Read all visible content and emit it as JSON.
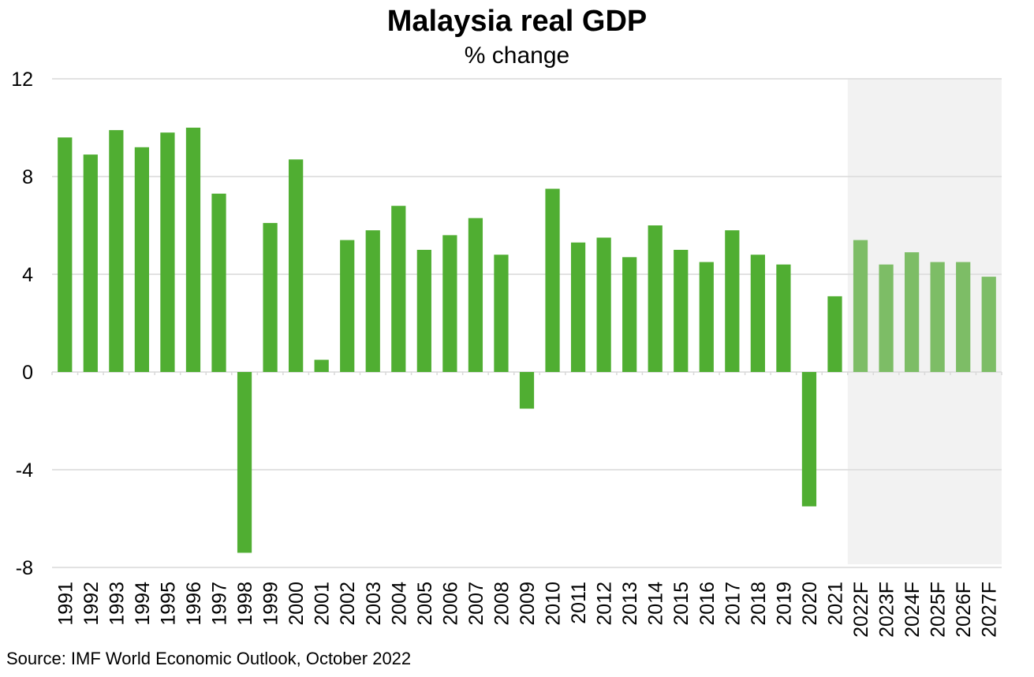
{
  "chart_data": {
    "type": "bar",
    "title": "Malaysia real GDP",
    "subtitle": "% change",
    "xlabel": "",
    "ylabel": "",
    "ylim": [
      -8,
      12
    ],
    "yticks": [
      12,
      8,
      4,
      0,
      -4,
      -8
    ],
    "grid": true,
    "categories": [
      "1991",
      "1992",
      "1993",
      "1994",
      "1995",
      "1996",
      "1997",
      "1998",
      "1999",
      "2000",
      "2001",
      "2002",
      "2003",
      "2004",
      "2005",
      "2006",
      "2007",
      "2008",
      "2009",
      "2010",
      "2011",
      "2012",
      "2013",
      "2014",
      "2015",
      "2016",
      "2017",
      "2018",
      "2019",
      "2020",
      "2021",
      "2022F",
      "2023F",
      "2024F",
      "2025F",
      "2026F",
      "2027F"
    ],
    "values": [
      9.6,
      8.9,
      9.9,
      9.2,
      9.8,
      10.0,
      7.3,
      -7.4,
      6.1,
      8.7,
      0.5,
      5.4,
      5.8,
      6.8,
      5.0,
      5.6,
      6.3,
      4.8,
      -1.5,
      7.5,
      5.3,
      5.5,
      4.7,
      6.0,
      5.0,
      4.5,
      5.8,
      4.8,
      4.4,
      -5.5,
      3.1,
      5.4,
      4.4,
      4.9,
      4.5,
      4.5,
      3.9
    ],
    "forecast_start_index": 31,
    "colors": {
      "actual": "#50ae32",
      "forecast": "#7dbd66",
      "forecast_shading": "#f2f2f2",
      "grid": "#d9d9d9"
    },
    "source": "Source: IMF World Economic Outlook, October 2022"
  }
}
